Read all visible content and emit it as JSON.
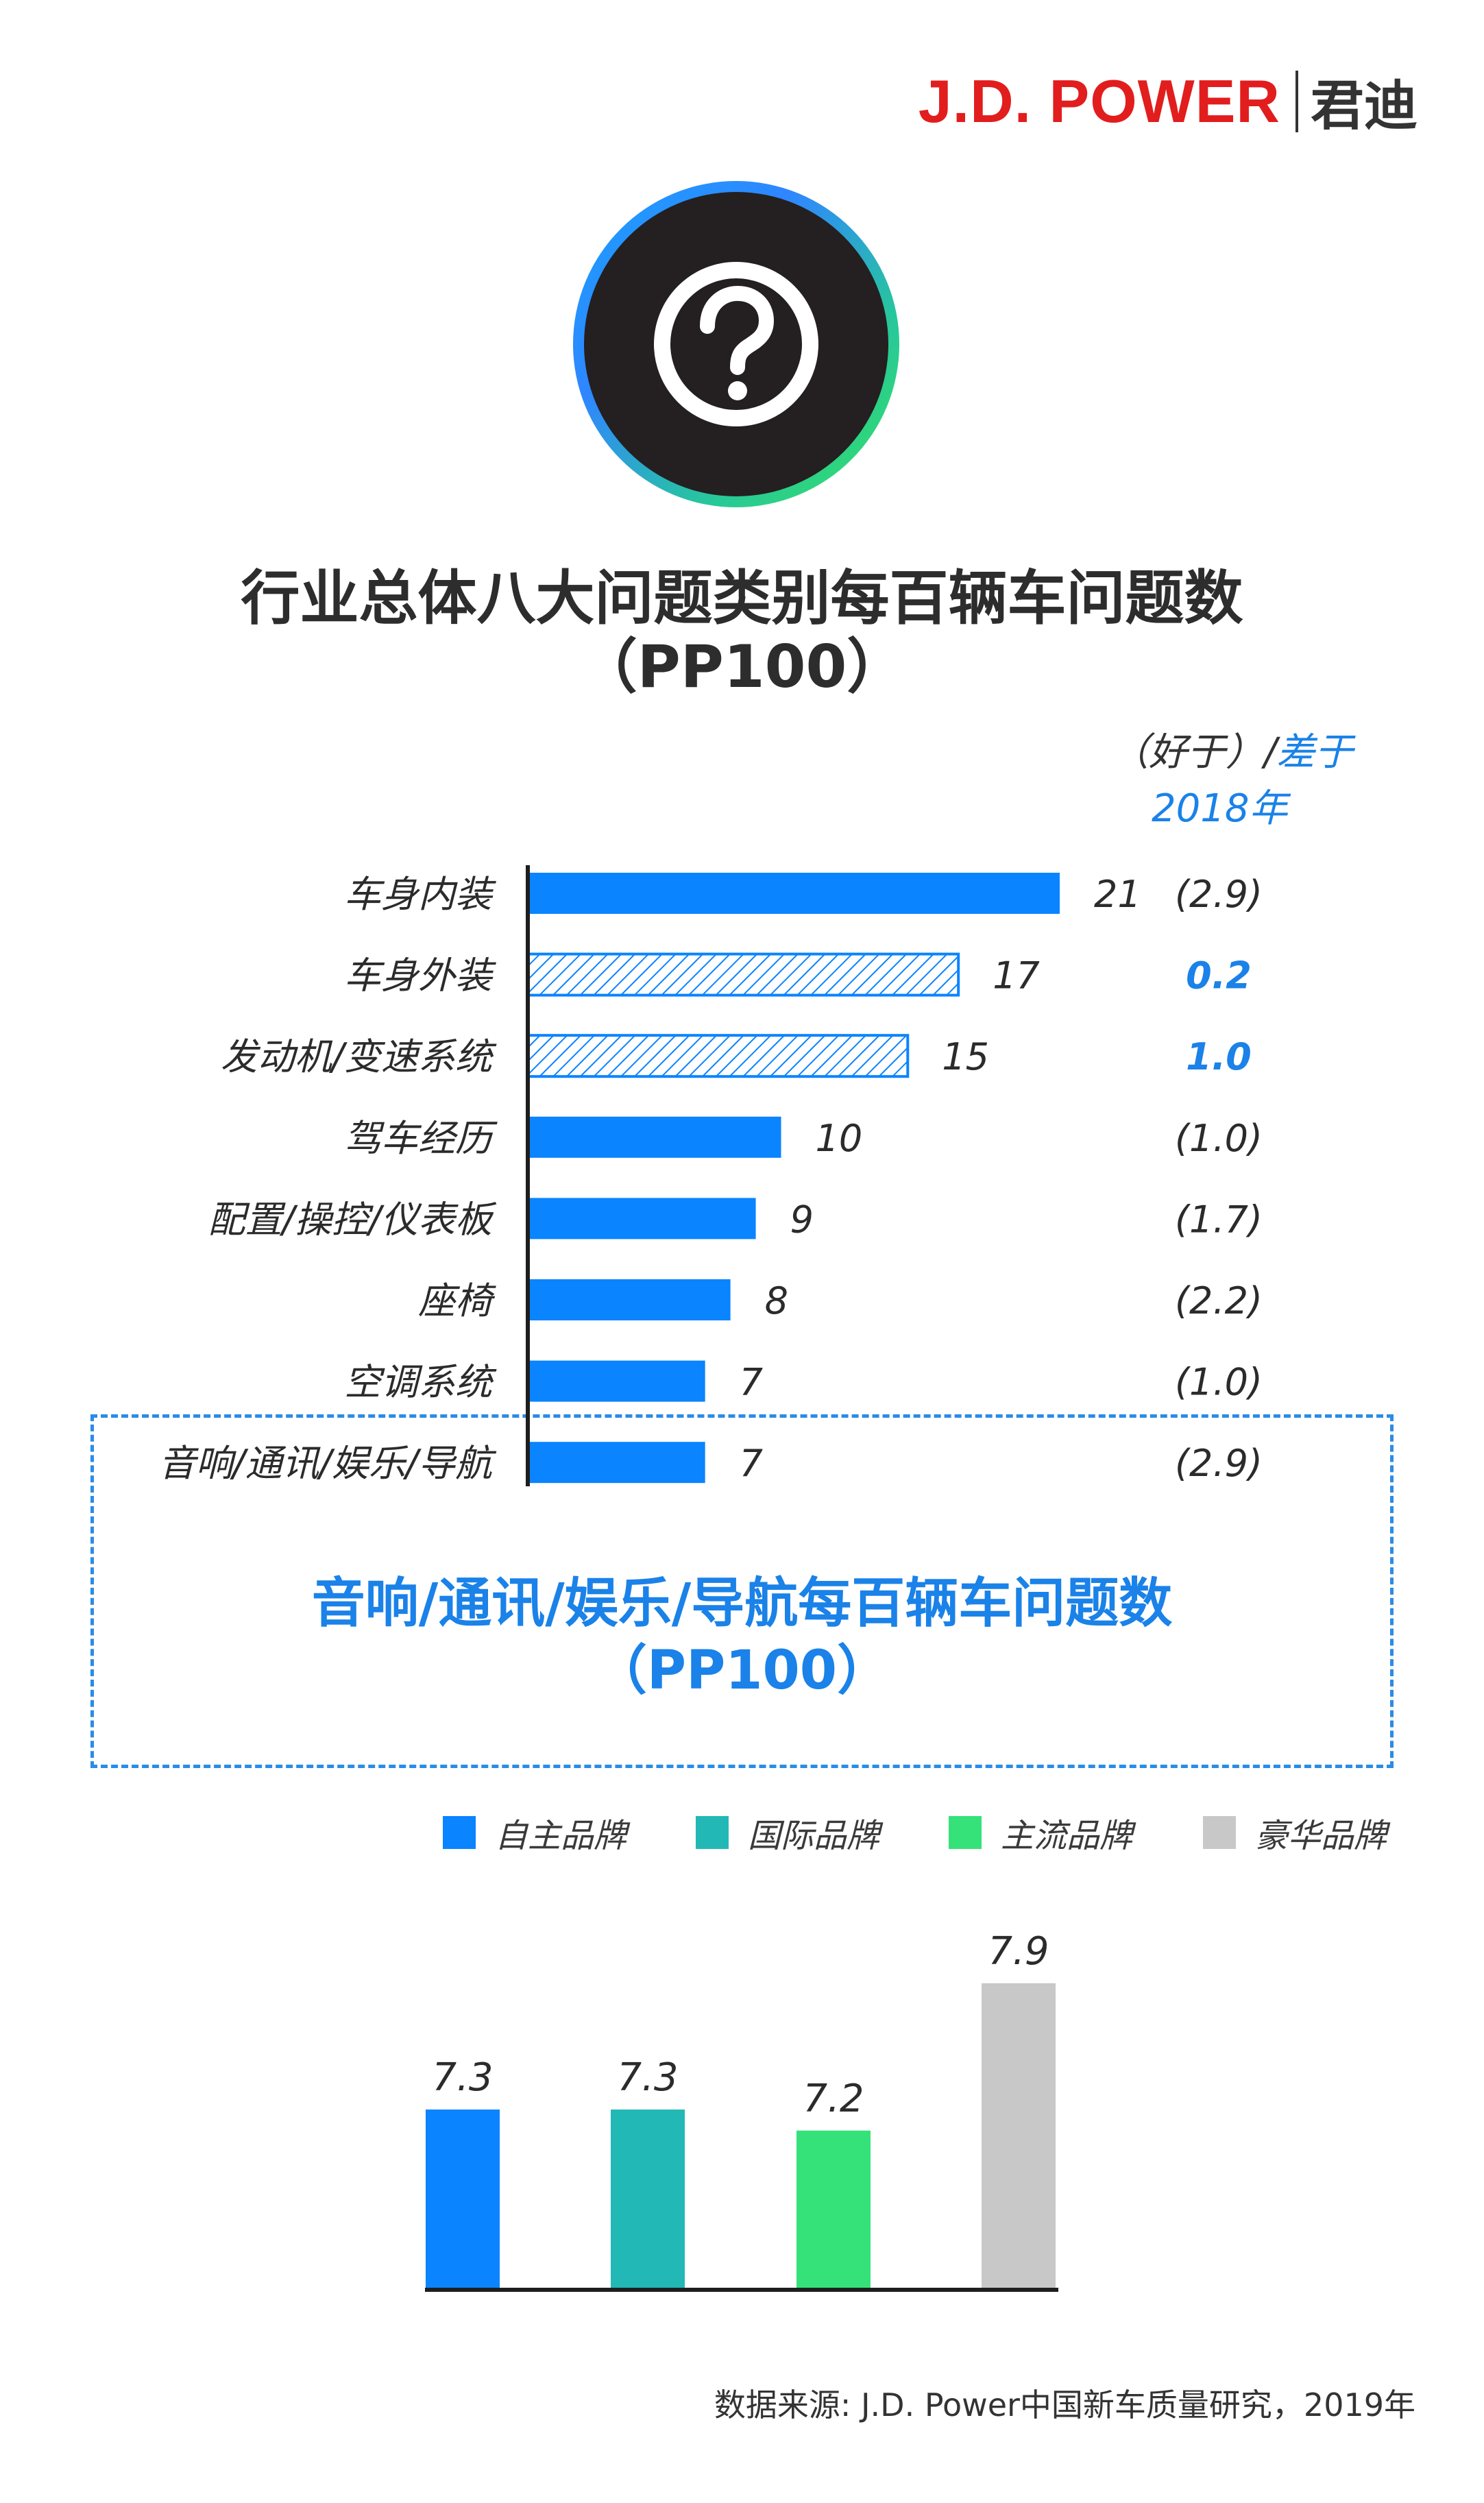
{
  "logo": {
    "brand": "J.D. POWER",
    "cn": "君迪"
  },
  "hero_icon": "question-mark-icon",
  "title": {
    "line1": "行业总体八大问题类别每百辆车问题数",
    "line2": "（PP100）"
  },
  "comparison_header": {
    "better": "（好于）/",
    "worse": "差于",
    "year": "2018年"
  },
  "colors": {
    "blue": "#0a84ff",
    "teal": "#22b8b5",
    "green": "#35e27a",
    "gray": "#c8c8c8",
    "accent_text": "#1a82e8",
    "red": "#e21d1d"
  },
  "chart_data": [
    {
      "type": "bar",
      "orientation": "horizontal",
      "title": "行业总体八大问题类别每百辆车问题数（PP100）",
      "categories": [
        "车身内装",
        "车身外装",
        "发动机/变速系统",
        "驾车经历",
        "配置/操控/仪表板",
        "座椅",
        "空调系统",
        "音响/通讯/娱乐/导航"
      ],
      "values": [
        21,
        17,
        15,
        10,
        9,
        8,
        7,
        7
      ],
      "value_labels": [
        "21",
        "17",
        "15",
        "10",
        "9",
        "8",
        "7",
        "7"
      ],
      "change_vs_2018": [
        "(2.9)",
        "0.2",
        "1.0",
        "(1.0)",
        "(1.7)",
        "(2.2)",
        "(1.0)",
        "(2.9)"
      ],
      "bar_style": [
        "solid",
        "hatched",
        "hatched",
        "solid",
        "solid",
        "solid",
        "solid",
        "solid"
      ],
      "change_color": [
        "dark",
        "blue",
        "blue",
        "dark",
        "dark",
        "dark",
        "dark",
        "dark"
      ],
      "xlim": [
        0,
        21
      ]
    },
    {
      "type": "bar",
      "title": "音响/通讯/娱乐/导航每百辆车问题数（PP100）",
      "categories": [
        "自主品牌",
        "国际品牌",
        "主流品牌",
        "豪华品牌"
      ],
      "values": [
        7.3,
        7.3,
        7.2,
        7.9
      ],
      "value_labels": [
        "7.3",
        "7.3",
        "7.2",
        "7.9"
      ],
      "colors": [
        "#0a84ff",
        "#22b8b5",
        "#35e27a",
        "#c8c8c8"
      ]
    }
  ],
  "sub_title": {
    "line1": "音响/通讯/娱乐/导航每百辆车问题数",
    "line2": "（PP100）"
  },
  "legend": [
    {
      "label": "自主品牌",
      "color": "#0a84ff"
    },
    {
      "label": "国际品牌",
      "color": "#22b8b5"
    },
    {
      "label": "主流品牌",
      "color": "#35e27a"
    },
    {
      "label": "豪华品牌",
      "color": "#c8c8c8"
    }
  ],
  "source": "数据来源: J.D. Power中国新车质量研究，2019年"
}
